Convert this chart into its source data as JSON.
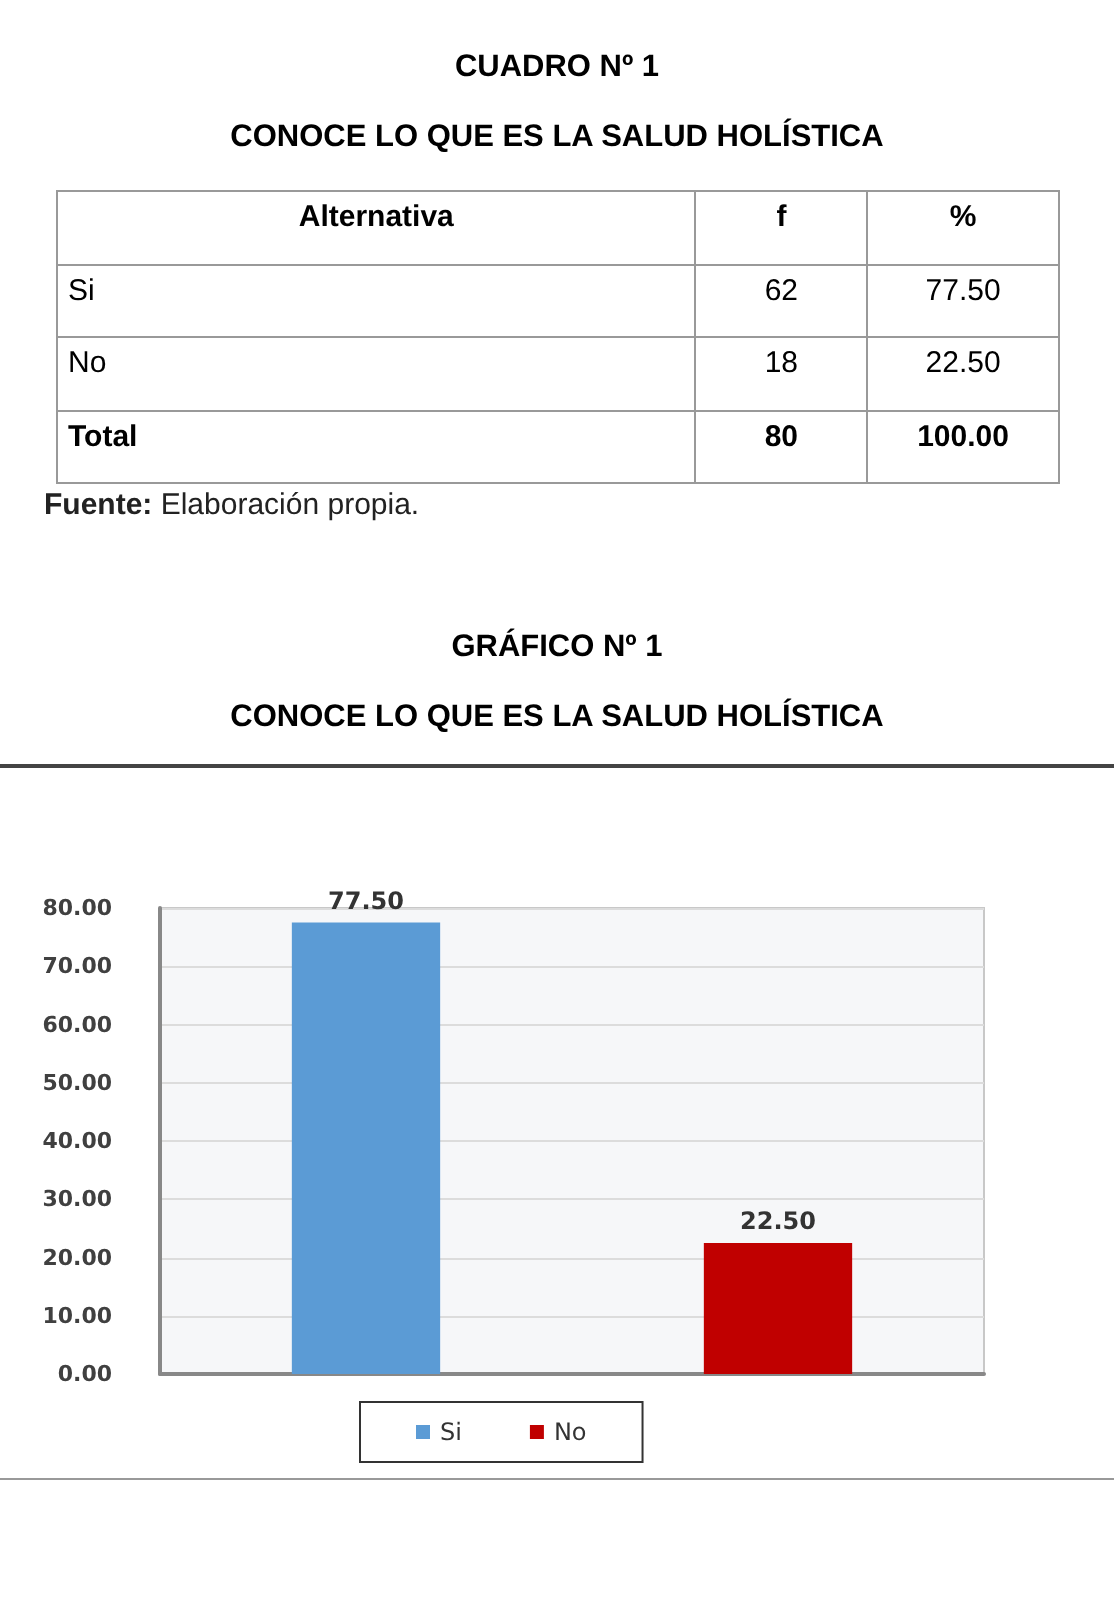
{
  "chart_data": [
    {
      "type": "other",
      "title": "CUADRO Nº 1",
      "subtitle": "CONOCE LO QUE ES LA SALUD HOLÍSTICA",
      "xlabel": "Alternativa",
      "categories": [
        "Si",
        "No",
        "Total"
      ],
      "series": [
        {
          "name": "f",
          "values": [
            62,
            18,
            80
          ],
          "value_labels": [
            "62",
            "18",
            "80"
          ]
        },
        {
          "name": "%",
          "values": [
            77.5,
            22.5,
            100
          ],
          "value_labels": [
            "77.50",
            "22.50",
            "100.00"
          ]
        }
      ],
      "annotations": [
        "Fuente: Elaboración propia."
      ]
    },
    {
      "type": "bar",
      "title": "GRÁFICO Nº 1",
      "subtitle": "CONOCE LO QUE ES LA SALUD HOLÍSTICA",
      "categories": [
        null,
        null
      ],
      "series": [
        {
          "name": "Si",
          "color": "#5b9bd5",
          "values": [
            77.5,
            null
          ],
          "value_labels": [
            "77.50",
            null
          ]
        },
        {
          "name": "No",
          "color": "#c00000",
          "values": [
            null,
            22.5
          ],
          "value_labels": [
            null,
            "22.50"
          ]
        }
      ],
      "ylim": [
        0,
        80
      ],
      "yticks": [
        {
          "value": 0,
          "label": "0.00"
        },
        {
          "value": 10,
          "label": "10.00"
        },
        {
          "value": 20,
          "label": "20.00"
        },
        {
          "value": 30,
          "label": "30.00"
        },
        {
          "value": 40,
          "label": "40.00"
        },
        {
          "value": 50,
          "label": "50.00"
        },
        {
          "value": 60,
          "label": "60.00"
        },
        {
          "value": 70,
          "label": "70.00"
        },
        {
          "value": 80,
          "label": "80.00"
        }
      ],
      "grid": "y",
      "legend": "bottom"
    }
  ]
}
